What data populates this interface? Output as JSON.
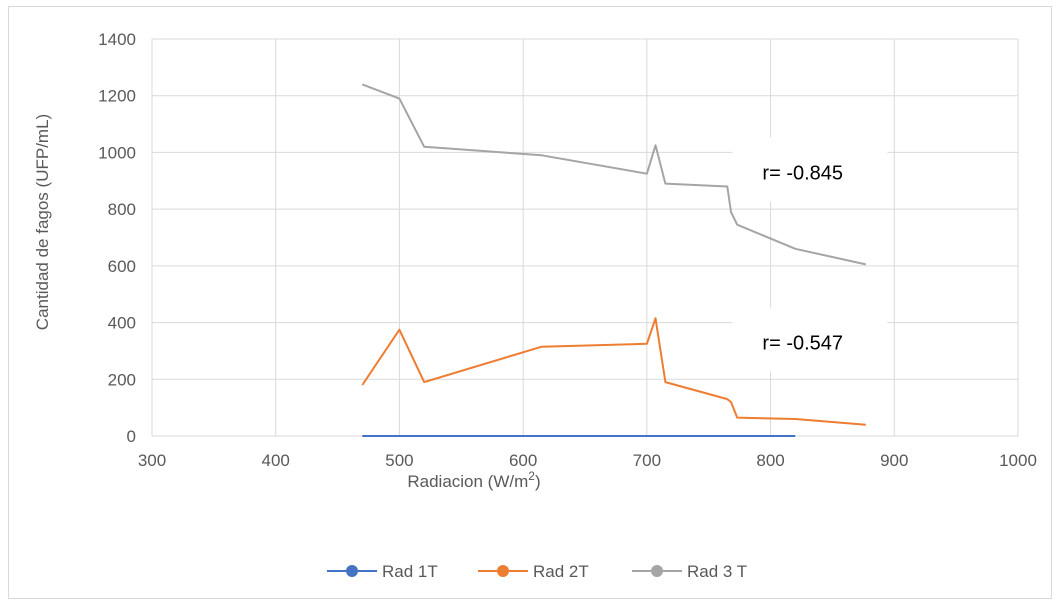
{
  "chart_data": {
    "type": "line",
    "xlabel": "Radiacion (W/m2)",
    "xlabel_main": "Radiacion (W/m",
    "xlabel_sup": "2",
    "xlabel_end": ")",
    "ylabel": "Cantidad de fagos (UFP/mL)",
    "xlim": [
      300,
      1000
    ],
    "ylim": [
      0,
      1400
    ],
    "x_ticks": [
      "300",
      "400",
      "500",
      "600",
      "700",
      "800",
      "900",
      "1000"
    ],
    "y_ticks": [
      "0",
      "200",
      "400",
      "600",
      "800",
      "1000",
      "1200",
      "1400"
    ],
    "grid": "vertical and horizontal",
    "legend_position": "bottom",
    "series": [
      {
        "name": "Rad 1T",
        "color": "#4472c4",
        "points": [
          [
            470,
            0
          ],
          [
            500,
            0
          ],
          [
            520,
            0
          ],
          [
            615,
            0
          ],
          [
            700,
            0
          ],
          [
            707,
            0
          ],
          [
            715,
            0
          ],
          [
            765,
            0
          ],
          [
            768,
            0
          ],
          [
            773,
            0
          ],
          [
            820,
            0
          ]
        ]
      },
      {
        "name": "Rad 2T",
        "color": "#ed7d31",
        "points": [
          [
            470,
            180
          ],
          [
            500,
            375
          ],
          [
            520,
            190
          ],
          [
            615,
            315
          ],
          [
            700,
            325
          ],
          [
            707,
            415
          ],
          [
            715,
            190
          ],
          [
            765,
            130
          ],
          [
            768,
            120
          ],
          [
            773,
            65
          ],
          [
            820,
            60
          ],
          [
            877,
            40
          ]
        ]
      },
      {
        "name": "Rad 3 T",
        "color": "#a5a5a5",
        "points": [
          [
            470,
            1240
          ],
          [
            500,
            1190
          ],
          [
            520,
            1020
          ],
          [
            615,
            990
          ],
          [
            700,
            925
          ],
          [
            707,
            1025
          ],
          [
            715,
            890
          ],
          [
            765,
            880
          ],
          [
            768,
            790
          ],
          [
            773,
            745
          ],
          [
            820,
            660
          ],
          [
            877,
            605
          ]
        ]
      }
    ],
    "annotations": [
      {
        "text": "r= -0.845",
        "x": 850,
        "y": 930
      },
      {
        "text": "r= -0.547",
        "x": 850,
        "y": 330
      }
    ]
  }
}
